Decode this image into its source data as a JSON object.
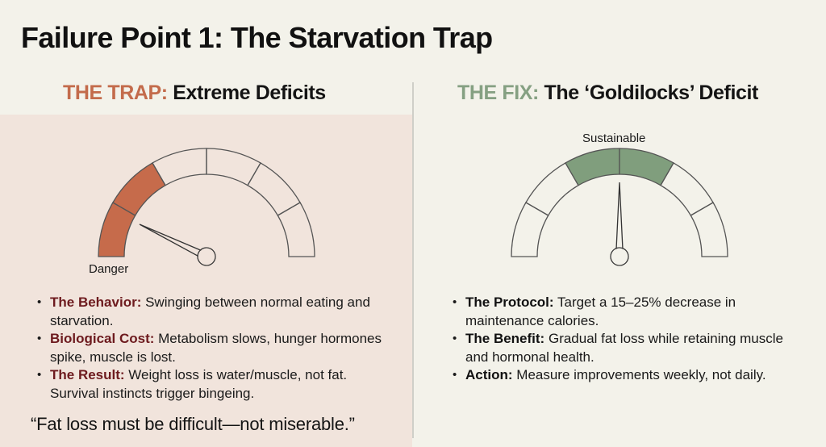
{
  "title": "Failure Point 1: The Starvation Trap",
  "colors": {
    "background": "#f3f2ea",
    "trap_panel": "#f1e4dc",
    "trap_accent": "#c36b4b",
    "trap_fill": "#c66b4b",
    "trap_key_text": "#6d1a1e",
    "fix_accent": "#85a082",
    "fix_fill": "#809e7d",
    "outline": "#555555"
  },
  "trap": {
    "tag": "THE TRAP:",
    "heading": "Extreme Deficits",
    "gauge": {
      "label": "Danger",
      "segments": 6,
      "filled_segments": [
        0,
        1
      ],
      "needle_position": "low-left"
    },
    "bullets": [
      {
        "key": "The Behavior:",
        "text": "Swinging between normal eating and starvation."
      },
      {
        "key": "Biological Cost:",
        "text": "Metabolism slows, hunger hormones spike, muscle is lost."
      },
      {
        "key": "The Result:",
        "text": "Weight loss is water/muscle, not fat. Survival instincts trigger bingeing."
      }
    ],
    "quote": "“Fat loss must be difficult—not miserable.”"
  },
  "fix": {
    "tag": "THE FIX:",
    "heading": "The ‘Goldilocks’ Deficit",
    "gauge": {
      "label": "Sustainable",
      "segments": 6,
      "filled_segments": [
        2,
        3
      ],
      "needle_position": "center"
    },
    "bullets": [
      {
        "key": "The Protocol:",
        "text": "Target a 15–25% decrease in maintenance calories."
      },
      {
        "key": "The Benefit:",
        "text": "Gradual fat loss while retaining muscle and hormonal health."
      },
      {
        "key": "Action:",
        "text": "Measure improvements weekly, not daily."
      }
    ]
  }
}
